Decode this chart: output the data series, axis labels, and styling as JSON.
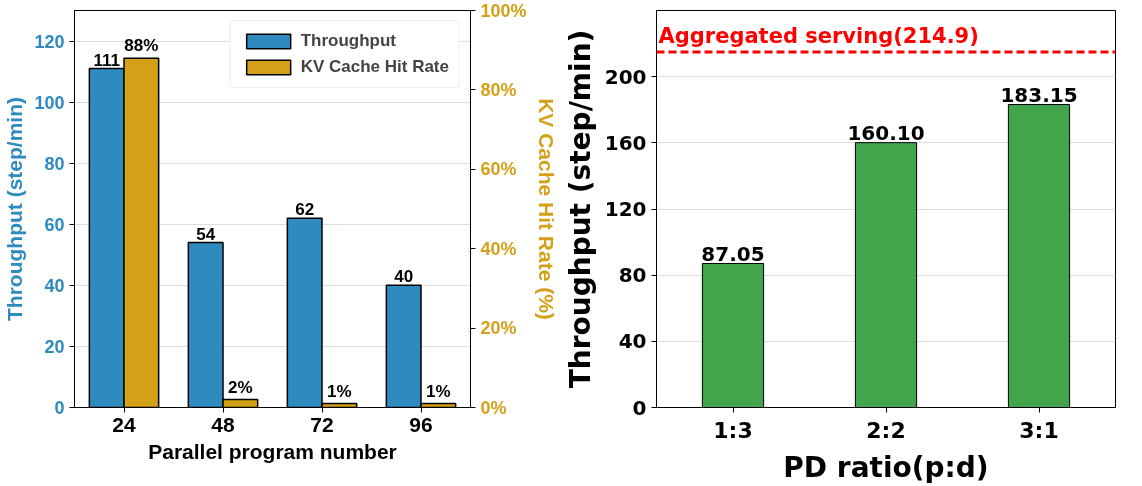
{
  "chart_data": [
    {
      "type": "bar",
      "categories": [
        "24",
        "48",
        "72",
        "96"
      ],
      "xlabel": "Parallel program number",
      "ylabel": "Throughput (step/min)",
      "y2label": "KV Cache Hit Rate (%)",
      "series": [
        {
          "name": "Throughput",
          "color": "#2e8bc0",
          "values": [
            111,
            54,
            62,
            40
          ],
          "value_labels": [
            "111",
            "54",
            "62",
            "40"
          ]
        },
        {
          "name": "KV Cache Hit Rate",
          "color": "#d4a017",
          "axis": "y2",
          "values": [
            88,
            2,
            1,
            1
          ],
          "value_labels": [
            "88%",
            "2%",
            "1%",
            "1%"
          ]
        }
      ],
      "ylim": [
        0,
        130
      ],
      "yticks": [
        0,
        20,
        40,
        60,
        80,
        100,
        120
      ],
      "y2lim": [
        0,
        100
      ],
      "y2ticks": [
        {
          "value": 0,
          "label": "0%"
        },
        {
          "value": 20,
          "label": "20%"
        },
        {
          "value": 40,
          "label": "40%"
        },
        {
          "value": 60,
          "label": "60%"
        },
        {
          "value": 80,
          "label": "80%"
        },
        {
          "value": 100,
          "label": "100%"
        }
      ],
      "grid": "y",
      "legend": "top right"
    },
    {
      "type": "bar",
      "categories": [
        "1:3",
        "2:2",
        "3:1"
      ],
      "xlabel": "PD ratio(p:d)",
      "ylabel": "Throughput (step/min)",
      "series": [
        {
          "color": "#43a54b",
          "values": [
            87.05,
            160.1,
            183.15
          ],
          "value_labels": [
            "87.05",
            "160.10",
            "183.15"
          ]
        }
      ],
      "ylim": [
        0,
        240
      ],
      "yticks": [
        0,
        40,
        80,
        120,
        160,
        200
      ],
      "grid": "y",
      "ref_lines": [
        {
          "axis": "y",
          "value": 214.9,
          "label": "Aggregated serving(214.9)",
          "color": "#ff0000",
          "line_style": "dashed"
        }
      ]
    }
  ]
}
